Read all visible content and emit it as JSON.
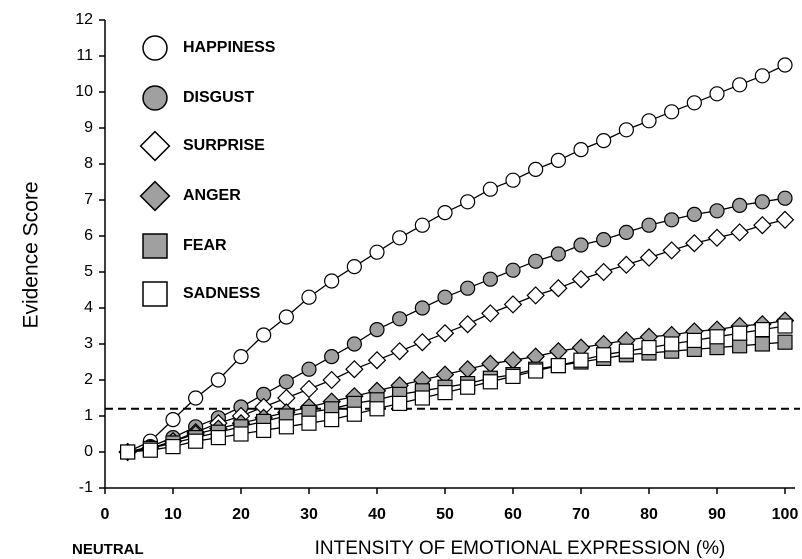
{
  "chart_data": {
    "type": "line",
    "y_label": "Evidence Score",
    "x_label": "INTENSITY OF EMOTIONAL EXPRESSION  (%)",
    "x_note": "NEUTRAL",
    "x": [
      3.33,
      6.67,
      10,
      13.33,
      16.67,
      20,
      23.33,
      26.67,
      30,
      33.33,
      36.67,
      40,
      43.33,
      46.67,
      50,
      53.33,
      56.67,
      60,
      63.33,
      66.67,
      70,
      73.33,
      76.67,
      80,
      83.33,
      86.67,
      90,
      93.33,
      96.67,
      100
    ],
    "xlim": [
      0,
      100
    ],
    "xticks": [
      0,
      10,
      20,
      30,
      40,
      50,
      60,
      70,
      80,
      90,
      100
    ],
    "ylim": [
      -1,
      12
    ],
    "yticks": [
      -1,
      0,
      1,
      2,
      3,
      4,
      5,
      6,
      7,
      8,
      9,
      10,
      11,
      12
    ],
    "hline": 1.2,
    "series": [
      {
        "name": "HAPPINESS",
        "marker": "circle",
        "color": "#ffffff",
        "values": [
          0,
          0.3,
          0.9,
          1.5,
          2.0,
          2.65,
          3.25,
          3.75,
          4.3,
          4.75,
          5.15,
          5.55,
          5.95,
          6.3,
          6.65,
          6.95,
          7.3,
          7.55,
          7.85,
          8.1,
          8.4,
          8.65,
          8.95,
          9.2,
          9.45,
          9.7,
          9.95,
          10.2,
          10.45,
          10.75
        ]
      },
      {
        "name": "DISGUST",
        "marker": "circle",
        "color": "#a0a0a0",
        "values": [
          0,
          0.15,
          0.4,
          0.7,
          0.95,
          1.25,
          1.6,
          1.95,
          2.3,
          2.65,
          3.0,
          3.4,
          3.7,
          4.0,
          4.3,
          4.55,
          4.8,
          5.05,
          5.3,
          5.5,
          5.75,
          5.9,
          6.1,
          6.3,
          6.45,
          6.6,
          6.7,
          6.85,
          6.95,
          7.05
        ]
      },
      {
        "name": "SURPRISE",
        "marker": "diamond",
        "color": "#ffffff",
        "values": [
          0,
          0.1,
          0.3,
          0.55,
          0.8,
          1.0,
          1.25,
          1.5,
          1.75,
          2.0,
          2.3,
          2.55,
          2.8,
          3.05,
          3.3,
          3.55,
          3.85,
          4.1,
          4.35,
          4.55,
          4.8,
          5.0,
          5.2,
          5.4,
          5.6,
          5.8,
          5.95,
          6.1,
          6.3,
          6.45
        ]
      },
      {
        "name": "ANGER",
        "marker": "diamond",
        "color": "#a0a0a0",
        "values": [
          0,
          0.1,
          0.3,
          0.5,
          0.65,
          0.8,
          0.95,
          1.1,
          1.25,
          1.4,
          1.55,
          1.7,
          1.85,
          2.0,
          2.15,
          2.3,
          2.45,
          2.55,
          2.65,
          2.8,
          2.9,
          3.0,
          3.1,
          3.2,
          3.25,
          3.35,
          3.4,
          3.5,
          3.55,
          3.65
        ]
      },
      {
        "name": "FEAR",
        "marker": "square",
        "color": "#a0a0a0",
        "values": [
          0,
          0.1,
          0.25,
          0.4,
          0.55,
          0.7,
          0.85,
          1.0,
          1.1,
          1.2,
          1.35,
          1.45,
          1.6,
          1.7,
          1.8,
          1.9,
          2.05,
          2.15,
          2.3,
          2.4,
          2.5,
          2.6,
          2.7,
          2.75,
          2.8,
          2.85,
          2.9,
          2.95,
          3.0,
          3.05
        ]
      },
      {
        "name": "SADNESS",
        "marker": "square",
        "color": "#ffffff",
        "values": [
          0,
          0.05,
          0.15,
          0.3,
          0.4,
          0.5,
          0.6,
          0.7,
          0.8,
          0.9,
          1.05,
          1.2,
          1.35,
          1.5,
          1.65,
          1.8,
          1.95,
          2.1,
          2.25,
          2.4,
          2.55,
          2.7,
          2.8,
          2.9,
          3.0,
          3.1,
          3.2,
          3.3,
          3.4,
          3.5
        ]
      }
    ]
  }
}
